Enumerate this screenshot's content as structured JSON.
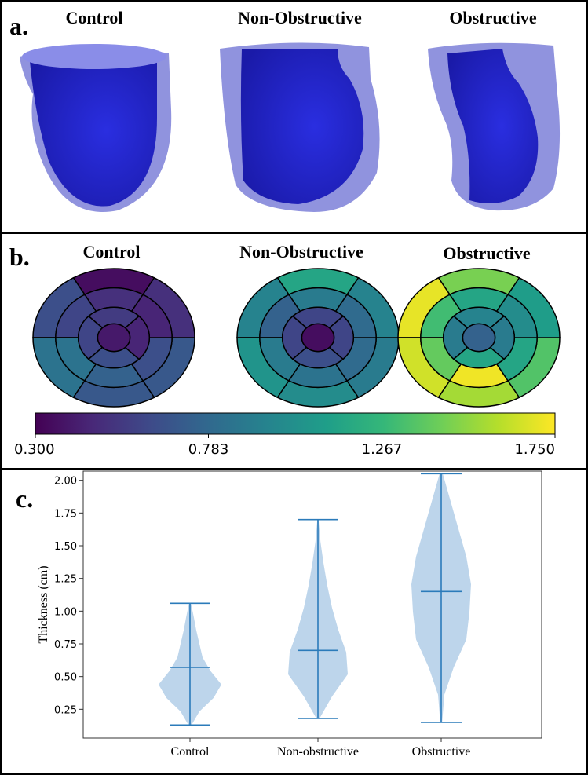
{
  "panel_a": {
    "label": "a.",
    "titles": [
      "Control",
      "Non-Obstructive",
      "Obstructive"
    ]
  },
  "panel_b": {
    "label": "b.",
    "titles": [
      "Control",
      "Non-Obstructive",
      "Obstructive"
    ],
    "bullseyes": [
      {
        "segments": [
          0.35,
          0.65,
          0.85,
          0.7,
          0.7,
          0.5,
          0.5,
          0.6,
          0.85,
          0.75,
          0.65,
          0.45,
          0.55,
          0.6,
          0.65,
          0.45,
          0.4
        ]
      },
      {
        "segments": [
          1.15,
          0.95,
          1.05,
          1.0,
          0.9,
          0.95,
          0.9,
          0.75,
          0.9,
          0.85,
          0.8,
          0.8,
          0.6,
          0.6,
          0.65,
          0.6,
          0.35
        ]
      },
      {
        "segments": [
          1.45,
          1.7,
          1.65,
          1.55,
          1.35,
          1.1,
          1.15,
          1.3,
          1.4,
          1.72,
          1.15,
          1.0,
          0.95,
          0.9,
          1.15,
          0.9,
          0.75
        ]
      }
    ],
    "colorbar": {
      "lim": [
        0.3,
        1.75
      ],
      "ticks": [
        {
          "value": 0.3,
          "label": "0.300"
        },
        {
          "value": 0.783,
          "label": "0.783"
        },
        {
          "value": 1.267,
          "label": "1.267"
        },
        {
          "value": 1.75,
          "label": "1.750"
        }
      ]
    }
  },
  "chart_data": {
    "type": "violin",
    "label": "c.",
    "ylabel": "Thickness (cm)",
    "categories": [
      "Control",
      "Non-obstructive",
      "Obstructive"
    ],
    "min": [
      0.13,
      0.18,
      0.15
    ],
    "max": [
      1.06,
      1.7,
      2.05
    ],
    "mean": [
      0.57,
      0.7,
      1.15
    ],
    "density": [
      [
        0.05,
        0.3,
        0.75,
        1.0,
        0.65,
        0.4,
        0.3,
        0.2,
        0.12,
        0.03
      ],
      [
        0.05,
        0.45,
        0.95,
        0.9,
        0.65,
        0.45,
        0.3,
        0.18,
        0.08,
        0.02
      ],
      [
        0.03,
        0.1,
        0.4,
        0.8,
        0.9,
        0.95,
        0.8,
        0.55,
        0.3,
        0.05
      ]
    ],
    "color": "#b9d3ea",
    "line_color": "#2b7bba",
    "ylim": [
      0.03,
      2.07
    ],
    "yticks": [
      {
        "value": 0.25,
        "label": "0.25"
      },
      {
        "value": 0.5,
        "label": "0.50"
      },
      {
        "value": 0.75,
        "label": "0.75"
      },
      {
        "value": 1.0,
        "label": "1.00"
      },
      {
        "value": 1.25,
        "label": "1.25"
      },
      {
        "value": 1.5,
        "label": "1.50"
      },
      {
        "value": 1.75,
        "label": "1.75"
      },
      {
        "value": 2.0,
        "label": "2.00"
      }
    ]
  }
}
